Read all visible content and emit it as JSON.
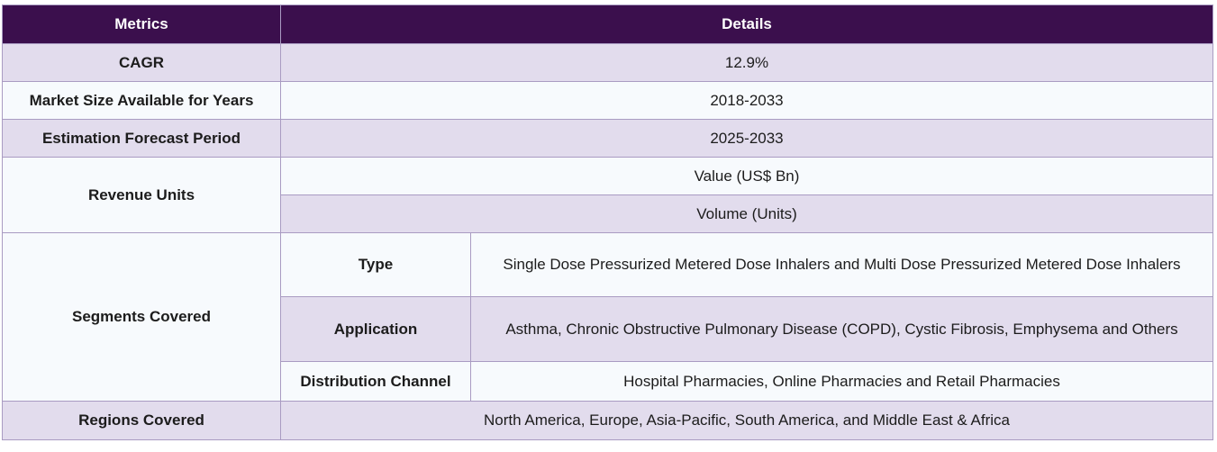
{
  "table": {
    "headers": {
      "metrics": "Metrics",
      "details": "Details"
    },
    "rows": {
      "cagr": {
        "label": "CAGR",
        "value": "12.9%"
      },
      "market_size": {
        "label": "Market Size Available for Years",
        "value": "2018-2033"
      },
      "forecast": {
        "label": "Estimation Forecast Period",
        "value": "2025-2033"
      },
      "revenue_units": {
        "label": "Revenue Units",
        "values": [
          "Value (US$ Bn)",
          "Volume (Units)"
        ]
      },
      "segments": {
        "label": "Segments Covered",
        "items": [
          {
            "name": "Type",
            "value": "Single Dose Pressurized Metered Dose Inhalers and Multi Dose Pressurized Metered Dose Inhalers"
          },
          {
            "name": "Application",
            "value": "Asthma, Chronic Obstructive Pulmonary Disease (COPD), Cystic Fibrosis, Emphysema and Others"
          },
          {
            "name": "Distribution Channel",
            "value": "Hospital Pharmacies, Online Pharmacies and Retail Pharmacies"
          }
        ]
      },
      "regions": {
        "label": "Regions Covered",
        "value": "North America, Europe, Asia-Pacific, South America, and Middle East & Africa"
      }
    }
  }
}
